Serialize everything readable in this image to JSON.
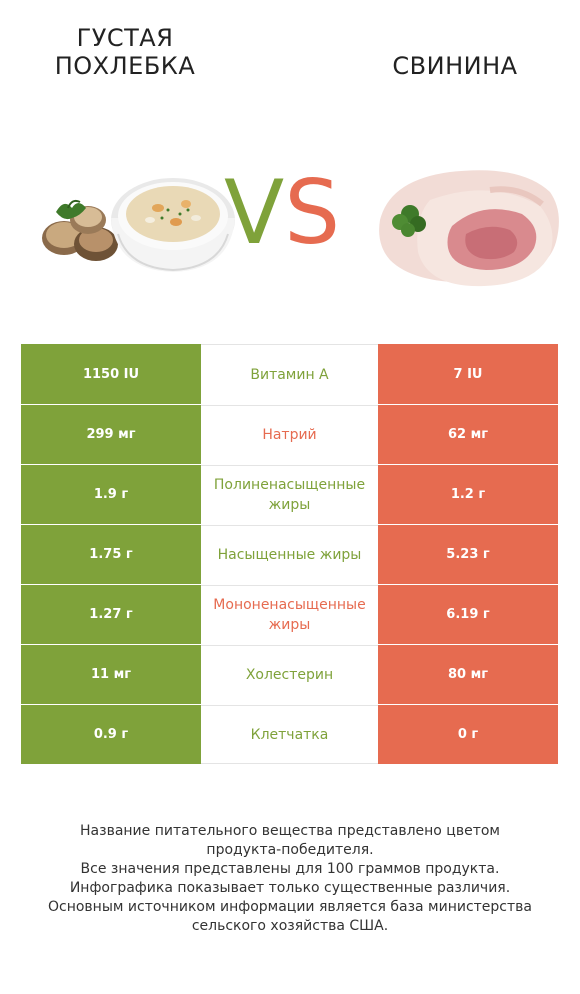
{
  "header": {
    "left_title_line1": "ГУСТАЯ",
    "left_title_line2": "ПОХЛЕБКА",
    "right_title": "СВИНИНА",
    "vs_v": "V",
    "vs_s": "S"
  },
  "colors": {
    "winner_left": "#7fa23a",
    "winner_right": "#e66b50"
  },
  "rows": [
    {
      "left": "1150 IU",
      "name": "Витамин A",
      "winner": "left",
      "right": "7 IU"
    },
    {
      "left": "299 мг",
      "name": "Натрий",
      "winner": "right",
      "right": "62 мг"
    },
    {
      "left": "1.9 г",
      "name": "Полиненасыщенные жиры",
      "winner": "left",
      "right": "1.2 г"
    },
    {
      "left": "1.75 г",
      "name": "Насыщенные жиры",
      "winner": "left",
      "right": "5.23 г"
    },
    {
      "left": "1.27 г",
      "name": "Мононенасыщенные жиры",
      "winner": "right",
      "right": "6.19 г"
    },
    {
      "left": "11 мг",
      "name": "Холестерин",
      "winner": "left",
      "right": "80 мг"
    },
    {
      "left": "0.9 г",
      "name": "Клетчатка",
      "winner": "left",
      "right": "0 г"
    }
  ],
  "footer": {
    "line1": "Название питательного вещества представлено цветом",
    "line2": "продукта-победителя.",
    "line3": "Все значения представлены для 100 граммов продукта.",
    "line4": "Инфографика показывает только существенные различия.",
    "line5": "Основным источником информации является база министерства",
    "line6": "сельского хозяйства США."
  }
}
